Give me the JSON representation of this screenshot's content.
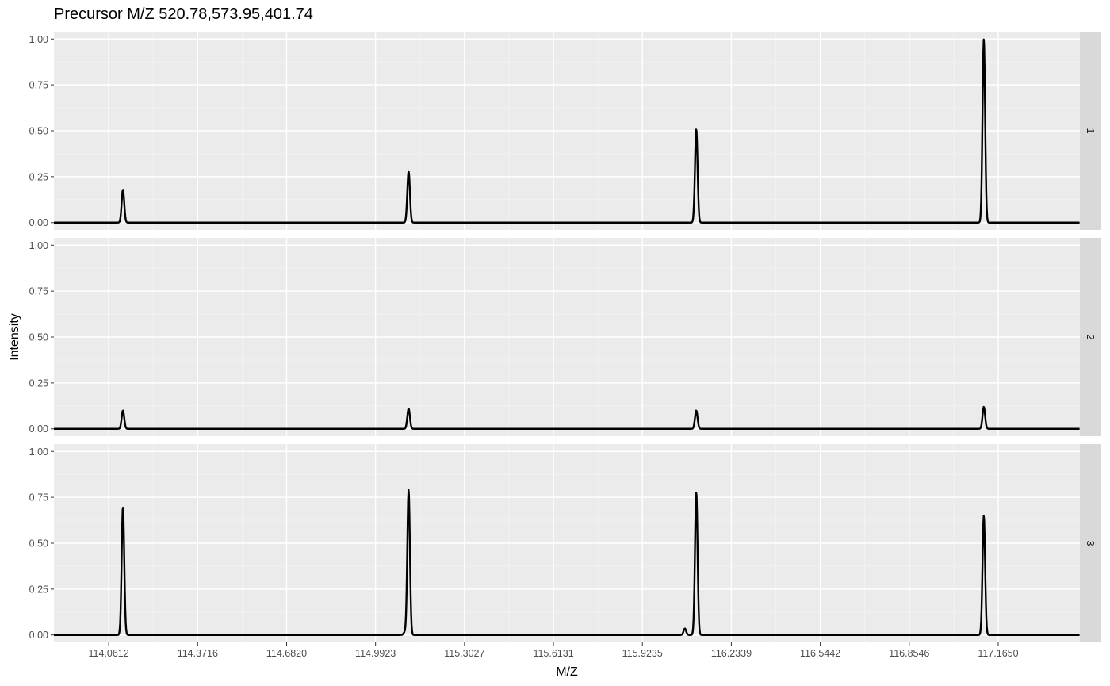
{
  "chart_data": {
    "type": "line",
    "title": "Precursor M/Z 520.78,573.95,401.74",
    "xlabel": "M/Z",
    "ylabel": "Intensity",
    "xlim": [
      113.87,
      117.45
    ],
    "ylim": [
      -0.04,
      1.04
    ],
    "x_ticks": [
      114.0612,
      114.3716,
      114.682,
      114.9923,
      115.3027,
      115.6131,
      115.9235,
      116.2339,
      116.5442,
      116.8546,
      117.165
    ],
    "x_tick_labels": [
      "114.0612",
      "114.3716",
      "114.6820",
      "114.9923",
      "115.3027",
      "115.6131",
      "115.9235",
      "116.2339",
      "116.5442",
      "116.8546",
      "117.1650"
    ],
    "y_ticks": [
      0,
      0.25,
      0.5,
      0.75,
      1
    ],
    "y_tick_labels": [
      "0.00",
      "0.25",
      "0.50",
      "0.75",
      "1.00"
    ],
    "grid": true,
    "facet_layout": "rows",
    "panels": [
      {
        "strip_label": "1",
        "peaks": [
          {
            "mz": 114.1109,
            "intensity": 0.18
          },
          {
            "mz": 115.1077,
            "intensity": 0.28
          },
          {
            "mz": 116.1115,
            "intensity": 0.51
          },
          {
            "mz": 117.1148,
            "intensity": 1.0
          }
        ]
      },
      {
        "strip_label": "2",
        "peaks": [
          {
            "mz": 114.1109,
            "intensity": 0.1
          },
          {
            "mz": 115.1077,
            "intensity": 0.11
          },
          {
            "mz": 116.1115,
            "intensity": 0.1
          },
          {
            "mz": 117.1148,
            "intensity": 0.12
          }
        ]
      },
      {
        "strip_label": "3",
        "peaks": [
          {
            "mz": 114.1109,
            "intensity": 0.7
          },
          {
            "mz": 115.0946,
            "intensity": 0.015
          },
          {
            "mz": 115.1077,
            "intensity": 0.79
          },
          {
            "mz": 116.0717,
            "intensity": 0.035
          },
          {
            "mz": 116.1115,
            "intensity": 0.78
          },
          {
            "mz": 117.1148,
            "intensity": 0.65
          }
        ]
      }
    ]
  }
}
